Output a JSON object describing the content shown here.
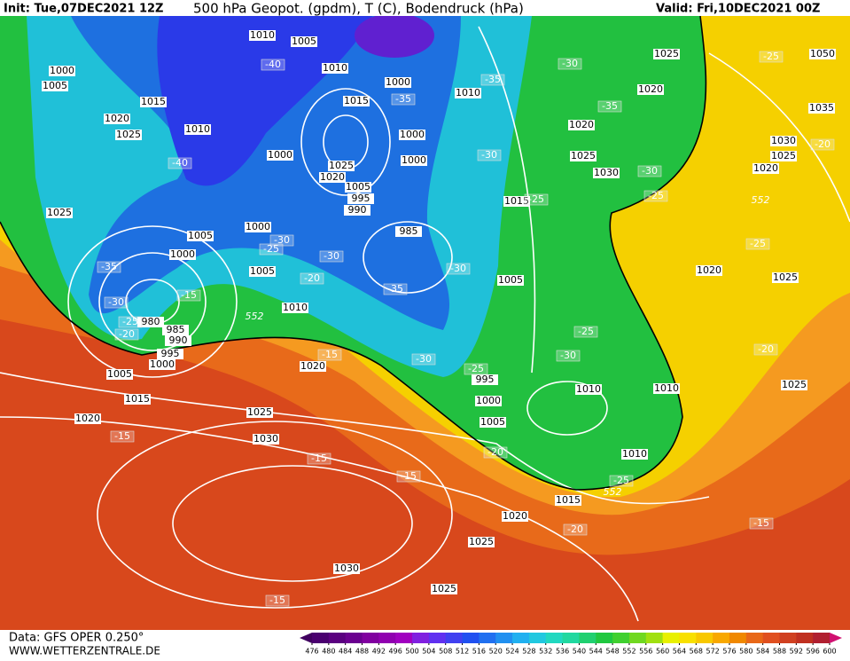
{
  "header": {
    "init": "Init: Tue,07DEC2021 12Z",
    "title": "500 hPa Geopot. (gpdm), T (C), Bodendruck (hPa)",
    "valid": "Valid: Fri,10DEC2021 00Z"
  },
  "footer": {
    "source": "Data: GFS OPER 0.250°",
    "site": "WWW.WETTERZENTRALE.DE"
  },
  "colorbar": {
    "ticks": [
      476,
      480,
      484,
      488,
      492,
      496,
      500,
      504,
      508,
      512,
      516,
      520,
      524,
      528,
      532,
      536,
      540,
      544,
      548,
      552,
      556,
      560,
      564,
      568,
      572,
      576,
      580,
      584,
      588,
      592,
      596,
      600
    ],
    "colors": [
      "#4a0070",
      "#5a0080",
      "#6a0090",
      "#8000a0",
      "#9000b0",
      "#a000c0",
      "#8020e0",
      "#6030f0",
      "#4040f0",
      "#2050f0",
      "#2070f0",
      "#2090f0",
      "#20b0f0",
      "#20c8e0",
      "#20d8c0",
      "#20d8a0",
      "#20d070",
      "#20c840",
      "#40d030",
      "#70d820",
      "#a0e010",
      "#e8f000",
      "#f8e000",
      "#f8c800",
      "#f8a800",
      "#f08800",
      "#e86818",
      "#e05020",
      "#d04020",
      "#c03020",
      "#b02030"
    ]
  },
  "map": {
    "isobar_labels": [
      1010,
      1005,
      1010,
      1000,
      1010,
      1015,
      1000,
      1000,
      1025,
      1020,
      1005,
      995,
      990,
      985,
      1000,
      1005,
      1010,
      1000,
      1005,
      1010,
      1015,
      1020,
      1025,
      1000,
      1005,
      1025,
      980,
      985,
      990,
      995,
      1000,
      1005,
      1015,
      1020,
      1025,
      1030,
      1020,
      1005,
      1015,
      1020,
      1025,
      1030,
      1020,
      1025,
      1035,
      1030,
      1025,
      1020,
      1050,
      1020,
      1025,
      1010,
      1010,
      1025,
      1000,
      995,
      1005,
      1010,
      1015,
      1020,
      1025,
      1030,
      1025,
      1000
    ],
    "temperature_labels": [
      -40,
      -40,
      -35,
      -35,
      -30,
      -35,
      -30,
      -30,
      -25,
      -25,
      -25,
      -20,
      -25,
      -30,
      -25,
      -30,
      -35,
      -35,
      -30,
      -20,
      -15,
      -30,
      -25,
      -20,
      -15,
      -30,
      -25,
      -25,
      -30,
      -20,
      -15,
      -15,
      -15,
      -20,
      -25,
      -20,
      -15,
      -15
    ],
    "geopotential_labels": [
      552,
      552,
      552
    ]
  }
}
